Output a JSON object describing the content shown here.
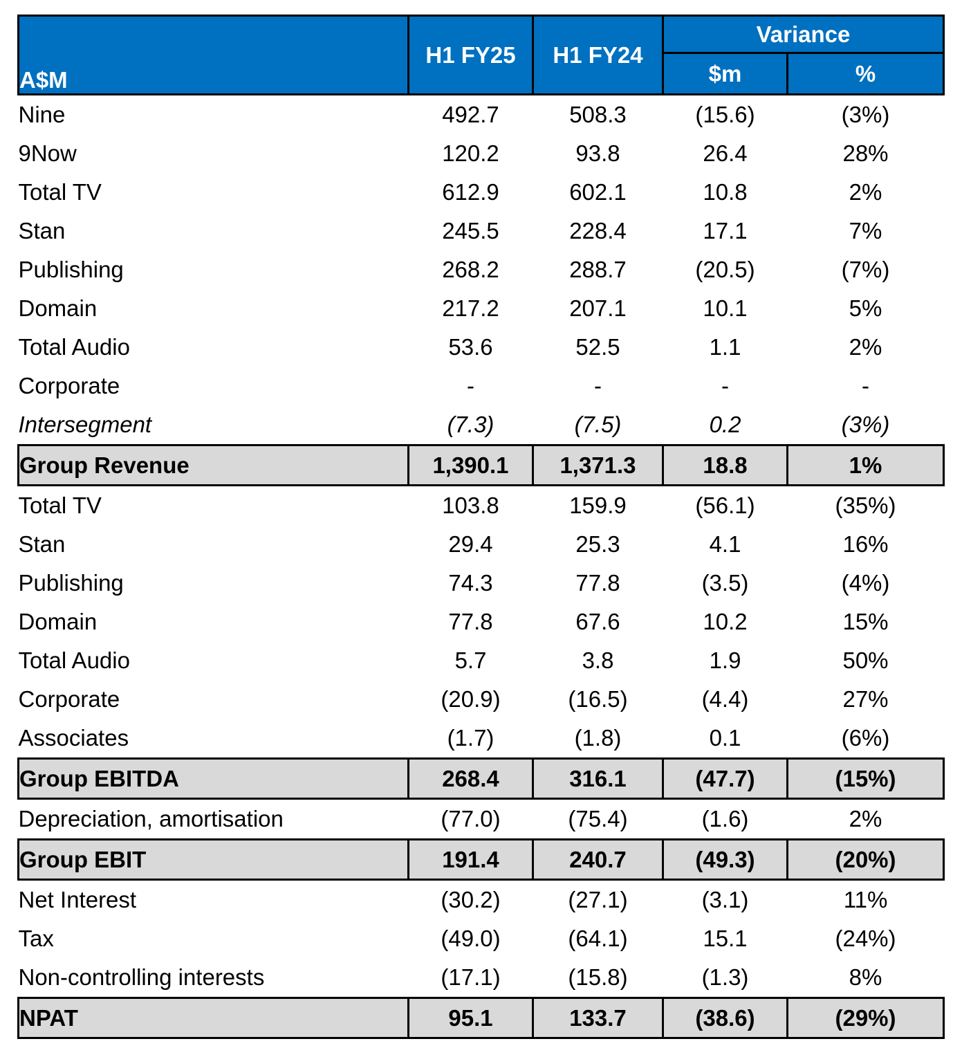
{
  "header": {
    "label": "A$M",
    "h1fy25": "H1 FY25",
    "h1fy24": "H1 FY24",
    "variance": "Variance",
    "var_dollars": "$m",
    "var_pct": "%"
  },
  "rows": [
    {
      "label": "Nine",
      "fy25": "492.7",
      "fy24": "508.3",
      "var": "(15.6)",
      "pct": "(3%)",
      "style": "indent"
    },
    {
      "label": "9Now",
      "fy25": "120.2",
      "fy24": "93.8",
      "var": "26.4",
      "pct": "28%",
      "style": "indent"
    },
    {
      "label": "Total TV",
      "fy25": "612.9",
      "fy24": "602.1",
      "var": "10.8",
      "pct": "2%",
      "style": "normal"
    },
    {
      "label": "Stan",
      "fy25": "245.5",
      "fy24": "228.4",
      "var": "17.1",
      "pct": "7%",
      "style": "normal"
    },
    {
      "label": "Publishing",
      "fy25": "268.2",
      "fy24": "288.7",
      "var": "(20.5)",
      "pct": "(7%)",
      "style": "normal"
    },
    {
      "label": "Domain",
      "fy25": "217.2",
      "fy24": "207.1",
      "var": "10.1",
      "pct": "5%",
      "style": "normal"
    },
    {
      "label": "Total Audio",
      "fy25": "53.6",
      "fy24": "52.5",
      "var": "1.1",
      "pct": "2%",
      "style": "normal"
    },
    {
      "label": "Corporate",
      "fy25": "-",
      "fy24": "-",
      "var": "-",
      "pct": "-",
      "style": "normal"
    },
    {
      "label": "Intersegment",
      "fy25": "(7.3)",
      "fy24": "(7.5)",
      "var": "0.2",
      "pct": "(3%)",
      "style": "italic"
    },
    {
      "label": "Group Revenue",
      "fy25": "1,390.1",
      "fy24": "1,371.3",
      "var": "18.8",
      "pct": "1%",
      "style": "total"
    },
    {
      "label": "Total TV",
      "fy25": "103.8",
      "fy24": "159.9",
      "var": "(56.1)",
      "pct": "(35%)",
      "style": "normal"
    },
    {
      "label": "Stan",
      "fy25": "29.4",
      "fy24": "25.3",
      "var": "4.1",
      "pct": "16%",
      "style": "normal"
    },
    {
      "label": "Publishing",
      "fy25": "74.3",
      "fy24": "77.8",
      "var": "(3.5)",
      "pct": "(4%)",
      "style": "normal"
    },
    {
      "label": "Domain",
      "fy25": "77.8",
      "fy24": "67.6",
      "var": "10.2",
      "pct": "15%",
      "style": "normal"
    },
    {
      "label": "Total Audio",
      "fy25": "5.7",
      "fy24": "3.8",
      "var": "1.9",
      "pct": "50%",
      "style": "normal"
    },
    {
      "label": "Corporate",
      "fy25": "(20.9)",
      "fy24": "(16.5)",
      "var": "(4.4)",
      "pct": "27%",
      "style": "normal"
    },
    {
      "label": "Associates",
      "fy25": "(1.7)",
      "fy24": "(1.8)",
      "var": "0.1",
      "pct": "(6%)",
      "style": "normal"
    },
    {
      "label": "Group EBITDA",
      "fy25": "268.4",
      "fy24": "316.1",
      "var": "(47.7)",
      "pct": "(15%)",
      "style": "total"
    },
    {
      "label": "Depreciation, amortisation",
      "fy25": "(77.0)",
      "fy24": "(75.4)",
      "var": "(1.6)",
      "pct": "2%",
      "style": "normal"
    },
    {
      "label": "Group EBIT",
      "fy25": "191.4",
      "fy24": "240.7",
      "var": "(49.3)",
      "pct": "(20%)",
      "style": "total"
    },
    {
      "label": "Net Interest",
      "fy25": "(30.2)",
      "fy24": "(27.1)",
      "var": "(3.1)",
      "pct": "11%",
      "style": "normal"
    },
    {
      "label": "Tax",
      "fy25": "(49.0)",
      "fy24": "(64.1)",
      "var": "15.1",
      "pct": "(24%)",
      "style": "normal"
    },
    {
      "label": "Non-controlling interests",
      "fy25": "(17.1)",
      "fy24": "(15.8)",
      "var": "(1.3)",
      "pct": "8%",
      "style": "normal"
    },
    {
      "label": "NPAT",
      "fy25": "95.1",
      "fy24": "133.7",
      "var": "(38.6)",
      "pct": "(29%)",
      "style": "total"
    }
  ],
  "colors": {
    "header_bg": "#0070c0",
    "header_text": "#ffffff",
    "total_bg": "#d9d9d9",
    "border": "#000000"
  }
}
